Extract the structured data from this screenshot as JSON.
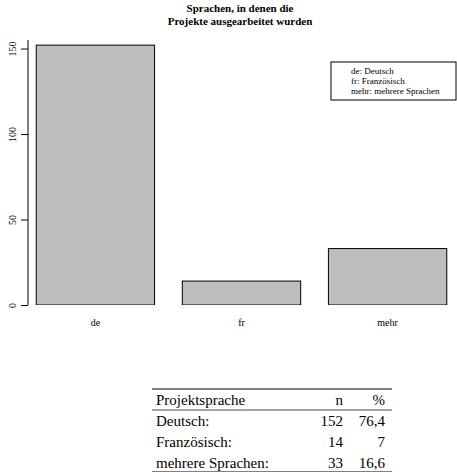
{
  "chart_data": {
    "type": "bar",
    "title": "Sprachen, in denen die\nProjekte ausgearbeitet wurden",
    "categories": [
      "de",
      "fr",
      "mehr"
    ],
    "values": [
      152,
      14,
      33
    ],
    "color": "#bebebe",
    "ylim": [
      0,
      155
    ],
    "yticks": [
      0,
      50,
      100,
      150
    ],
    "grid": false,
    "legend": "top-right",
    "annotations": [
      "de: Deutsch",
      "fr: Französisch",
      "mehr: mehrere Sprachen"
    ]
  },
  "table": {
    "header": [
      "Projektsprache",
      "n",
      "%"
    ],
    "rows": [
      [
        "Deutsch:",
        152,
        "76,4"
      ],
      [
        "Französisch:",
        14,
        "7"
      ],
      [
        "mehrere Sprachen:",
        33,
        "16,6"
      ]
    ]
  }
}
